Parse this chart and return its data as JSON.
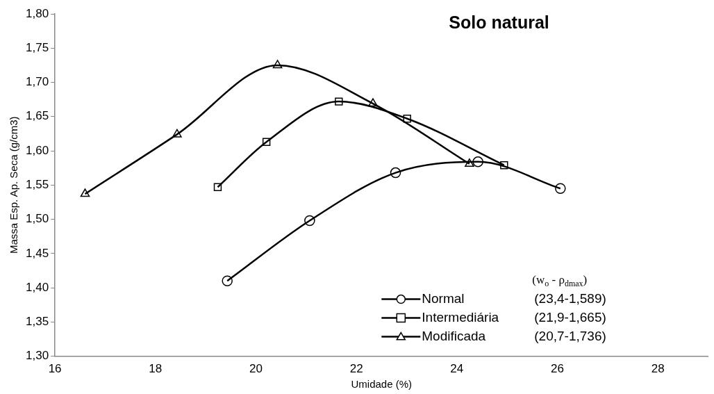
{
  "chart_data": {
    "type": "line",
    "title": "Solo natural",
    "xlabel": "Umidade (%)",
    "ylabel": "Massa Esp. Ap. Seca (g/cm3)",
    "legend_title": "(w$_{o}$ - ρ$_{dmax}$)",
    "xlim": [
      16,
      29
    ],
    "xticks": [
      16,
      18,
      20,
      22,
      24,
      26,
      28
    ],
    "ylim": [
      1.3,
      1.8
    ],
    "yticks": [
      {
        "value": 1.3,
        "label": "1,30"
      },
      {
        "value": 1.35,
        "label": "1,35"
      },
      {
        "value": 1.4,
        "label": "1,40"
      },
      {
        "value": 1.45,
        "label": "1,45"
      },
      {
        "value": 1.5,
        "label": "1,50"
      },
      {
        "value": 1.55,
        "label": "1,55"
      },
      {
        "value": 1.6,
        "label": "1,60"
      },
      {
        "value": 1.65,
        "label": "1,65"
      },
      {
        "value": 1.7,
        "label": "1,70"
      },
      {
        "value": 1.75,
        "label": "1,75"
      },
      {
        "value": 1.8,
        "label": "1,80"
      }
    ],
    "grid": false,
    "legend": "bottom right",
    "line_style": "solid",
    "series": [
      {
        "name": "Normal",
        "color": "#000000",
        "marker": "circle",
        "x": [
          19.43,
          21.07,
          22.78,
          24.42,
          26.06
        ],
        "values": [
          1.41,
          1.498,
          1.568,
          1.584,
          1.545
        ]
      },
      {
        "name": "Intermediária",
        "color": "#000000",
        "marker": "square",
        "x": [
          19.24,
          20.21,
          21.65,
          23.01,
          24.94
        ],
        "values": [
          1.547,
          1.613,
          1.672,
          1.647,
          1.579
        ]
      },
      {
        "name": "Modificada",
        "color": "#000000",
        "marker": "triangle",
        "x": [
          16.6,
          18.43,
          20.43,
          22.33,
          24.25
        ],
        "values": [
          1.537,
          1.624,
          1.725,
          1.669,
          1.581
        ]
      }
    ],
    "annotations": [
      "(23,4-1,589)",
      "(21,9-1,665)",
      "(20,7-1,736)"
    ]
  }
}
